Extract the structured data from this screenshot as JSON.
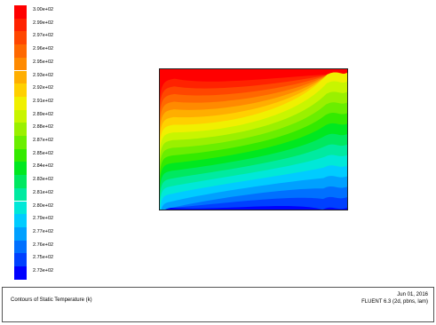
{
  "legend": {
    "levels": [
      {
        "label": "3.00e+02",
        "color": "#ff0000"
      },
      {
        "label": "2.99e+02",
        "color": "#ff2200"
      },
      {
        "label": "2.97e+02",
        "color": "#ff4600"
      },
      {
        "label": "2.96e+02",
        "color": "#ff6800"
      },
      {
        "label": "2.95e+02",
        "color": "#ff8a00"
      },
      {
        "label": "2.93e+02",
        "color": "#ffae00"
      },
      {
        "label": "2.92e+02",
        "color": "#ffd000"
      },
      {
        "label": "2.91e+02",
        "color": "#f0f000"
      },
      {
        "label": "2.89e+02",
        "color": "#c8f500"
      },
      {
        "label": "2.88e+02",
        "color": "#9af000"
      },
      {
        "label": "2.87e+02",
        "color": "#6aee00"
      },
      {
        "label": "2.85e+02",
        "color": "#33ea00"
      },
      {
        "label": "2.84e+02",
        "color": "#00e820"
      },
      {
        "label": "2.83e+02",
        "color": "#00e860"
      },
      {
        "label": "2.81e+02",
        "color": "#00eaa0"
      },
      {
        "label": "2.80e+02",
        "color": "#00e8d8"
      },
      {
        "label": "2.79e+02",
        "color": "#00ccff"
      },
      {
        "label": "2.77e+02",
        "color": "#00a0ff"
      },
      {
        "label": "2.76e+02",
        "color": "#0070ff"
      },
      {
        "label": "2.75e+02",
        "color": "#0040ff"
      },
      {
        "label": "2.73e+02",
        "color": "#0000ff"
      }
    ]
  },
  "footer": {
    "title": "Contours of Static Temperature (k)",
    "date": "Jun 01, 2016",
    "solver": "FLUENT 6.3 (2d, pbns, lam)"
  }
}
